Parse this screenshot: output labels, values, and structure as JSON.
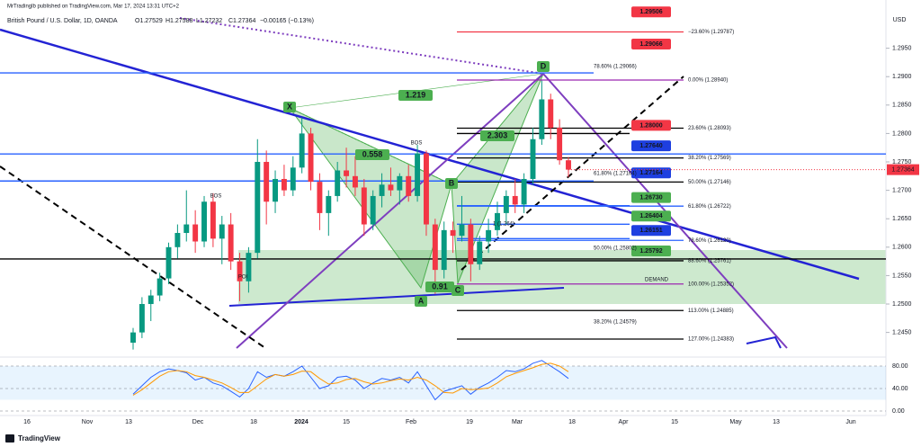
{
  "publisher": "MrTradinglb published on TradingView.com, Mar 17, 2024 13:31 UTC+2",
  "brand": "TradingView",
  "chart_data": [
    {
      "type": "candlestick",
      "title": "British Pound / U.S. Dollar, 1D, OANDA",
      "header_values": [
        "O1.27529",
        "H1.27588",
        "L1.27232",
        "C1.27364",
        "−0.00165 (−0.13%)"
      ],
      "currency": "USD",
      "categories": [
        null,
        null,
        null,
        null,
        null,
        null,
        null,
        null,
        null,
        null,
        null,
        null,
        null,
        null,
        null,
        null,
        null,
        null,
        null,
        null,
        null,
        null,
        null,
        null,
        null,
        null,
        null,
        null,
        null,
        null,
        null,
        null,
        null,
        null,
        null,
        null,
        null,
        null,
        null,
        null,
        null,
        null,
        null,
        null,
        null,
        null,
        null,
        null,
        null,
        null
      ],
      "open": [
        1.2432,
        1.245,
        1.25,
        1.2515,
        1.2545,
        1.26,
        1.2625,
        1.264,
        1.261,
        1.268,
        1.2615,
        1.264,
        1.2575,
        1.254,
        1.259,
        1.275,
        1.268,
        1.272,
        1.27,
        1.274,
        1.28,
        1.2715,
        1.266,
        1.269,
        1.2735,
        1.2725,
        1.2705,
        1.264,
        1.269,
        1.271,
        1.27,
        1.2725,
        1.269,
        1.2765,
        1.264,
        1.256,
        1.263,
        1.262,
        1.264,
        1.257,
        1.261,
        1.263,
        1.266,
        1.269,
        1.2675,
        1.272,
        1.279,
        1.286,
        1.281,
        1.27529
      ],
      "high": [
        1.2458,
        1.2512,
        1.2525,
        1.2555,
        1.2608,
        1.264,
        1.27,
        1.2665,
        1.269,
        1.2695,
        1.2655,
        1.266,
        1.259,
        1.26,
        1.279,
        1.277,
        1.2735,
        1.2745,
        1.276,
        1.2828,
        1.281,
        1.273,
        1.27,
        1.275,
        1.2775,
        1.276,
        1.272,
        1.27,
        1.273,
        1.274,
        1.273,
        1.2745,
        1.278,
        1.277,
        1.265,
        1.2645,
        1.2645,
        1.269,
        1.265,
        1.262,
        1.265,
        1.268,
        1.27,
        1.272,
        1.273,
        1.281,
        1.2893,
        1.287,
        1.2825,
        1.27588
      ],
      "low": [
        1.242,
        1.244,
        1.247,
        1.2505,
        1.2535,
        1.258,
        1.261,
        1.259,
        1.26,
        1.26,
        1.257,
        1.256,
        1.2505,
        1.252,
        1.258,
        1.264,
        1.266,
        1.269,
        1.269,
        1.273,
        1.27,
        1.263,
        1.262,
        1.268,
        1.2705,
        1.269,
        1.262,
        1.263,
        1.267,
        1.269,
        1.2675,
        1.268,
        1.268,
        1.262,
        1.2518,
        1.2545,
        1.259,
        1.261,
        1.254,
        1.256,
        1.259,
        1.262,
        1.264,
        1.266,
        1.266,
        1.271,
        1.278,
        1.279,
        1.2745,
        1.27232
      ],
      "close": [
        1.245,
        1.25,
        1.2515,
        1.2545,
        1.26,
        1.2625,
        1.264,
        1.261,
        1.268,
        1.2615,
        1.264,
        1.2575,
        1.254,
        1.259,
        1.275,
        1.268,
        1.272,
        1.27,
        1.274,
        1.28,
        1.2715,
        1.266,
        1.269,
        1.2735,
        1.2725,
        1.2705,
        1.264,
        1.269,
        1.271,
        1.27,
        1.2725,
        1.269,
        1.2765,
        1.264,
        1.256,
        1.263,
        1.262,
        1.264,
        1.257,
        1.261,
        1.263,
        1.266,
        1.269,
        1.2675,
        1.272,
        1.279,
        1.286,
        1.281,
        1.27529,
        1.27364
      ],
      "up_color": "#089981",
      "down_color": "#f23645",
      "last_price": {
        "value": 1.27364,
        "label": "1.27364",
        "color": "#f23645"
      },
      "ylim": [
        1.24225,
        1.3019
      ],
      "yticks": [
        {
          "value": 1.245,
          "label": "1.2450"
        },
        {
          "value": 1.25,
          "label": "1.2500"
        },
        {
          "value": 1.255,
          "label": "1.2550"
        },
        {
          "value": 1.26,
          "label": "1.2600"
        },
        {
          "value": 1.265,
          "label": "1.2650"
        },
        {
          "value": 1.27,
          "label": "1.2700"
        },
        {
          "value": 1.275,
          "label": "1.2750"
        },
        {
          "value": 1.28,
          "label": "1.2800"
        },
        {
          "value": 1.285,
          "label": "1.2850"
        },
        {
          "value": 1.29,
          "label": "1.2900"
        },
        {
          "value": 1.295,
          "label": "1.2950"
        }
      ],
      "time_labels": [
        "16",
        "Nov",
        "13",
        "Dec",
        "18",
        "2024",
        "15",
        "Feb",
        "19",
        "Mar",
        "18",
        "Apr",
        "15",
        "May",
        "13",
        "Jun"
      ],
      "levels": [
        {
          "label": "−23.60% (1.29787)",
          "value": 1.29787,
          "color": "#f23645"
        },
        {
          "label": "0.00% (1.28940)",
          "value": 1.2894,
          "color": "#9c27b0"
        },
        {
          "label": "23.60% (1.28093)",
          "value": 1.28093,
          "color": "#000000"
        },
        {
          "label": "38.20% (1.27569)",
          "value": 1.27569,
          "color": "#000000"
        },
        {
          "label": "50.00% (1.27146)",
          "value": 1.27146,
          "color": "#000000"
        },
        {
          "label": "61.80% (1.26722)",
          "value": 1.26722,
          "color": "#2962ff"
        },
        {
          "label": "78.60% (1.26120)",
          "value": 1.2612,
          "color": "#2962ff"
        },
        {
          "label": "88.60% (1.25761)",
          "value": 1.25761,
          "color": "#000000"
        },
        {
          "label": "100.00% (1.25352)",
          "value": 1.25352,
          "color": "#9c27b0"
        },
        {
          "label": "113.00% (1.24885)",
          "value": 1.24885,
          "color": "#000000"
        },
        {
          "label": "127.00% (1.24383)",
          "value": 1.24383,
          "color": "#000000"
        }
      ],
      "price_tags": [
        {
          "value": 1.29506,
          "label": "1.29506",
          "color": "#f23645"
        },
        {
          "value": 1.29066,
          "label": "1.29066",
          "color": "#f23645"
        },
        {
          "value": 1.28,
          "label": "1.28000",
          "color": "#f23645"
        },
        {
          "value": 1.2764,
          "label": "1.27640",
          "color": "#1e3fe0"
        },
        {
          "value": 1.27164,
          "label": "1.27164",
          "color": "#1e3fe0"
        },
        {
          "value": 1.2673,
          "label": "1.26730",
          "color": "#4caf50"
        },
        {
          "value": 1.26404,
          "label": "1.26404",
          "color": "#4caf50"
        },
        {
          "value": 1.26151,
          "label": "1.26151",
          "color": "#1e3fe0"
        },
        {
          "value": 1.25792,
          "label": "1.25792",
          "color": "#4caf50"
        }
      ],
      "annotations": [
        "X",
        "A",
        "B",
        "C",
        "D",
        "1.219",
        "0.558",
        "2.303",
        "0.91",
        "BOS",
        "BOS",
        "POI",
        "DEMAND",
        "78.60% (1.29066)",
        "61.80% (1.27164)",
        "50.00% (1.25802)",
        "38.20% (1.24579)",
        "1 (1.264)"
      ]
    },
    {
      "type": "line",
      "series": [
        {
          "color": "#2962ff",
          "values": [
            30,
            45,
            60,
            70,
            75,
            72,
            68,
            55,
            60,
            50,
            45,
            35,
            25,
            40,
            70,
            60,
            65,
            62,
            70,
            80,
            60,
            40,
            45,
            60,
            62,
            55,
            40,
            50,
            58,
            55,
            60,
            50,
            70,
            45,
            20,
            35,
            40,
            45,
            30,
            42,
            50,
            60,
            72,
            70,
            75,
            85,
            90,
            80,
            70,
            58
          ]
        },
        {
          "color": "#ff9800",
          "values": [
            28,
            38,
            50,
            62,
            70,
            72,
            70,
            63,
            60,
            55,
            50,
            42,
            33,
            33,
            45,
            57,
            65,
            62,
            65,
            71,
            70,
            58,
            48,
            50,
            56,
            58,
            52,
            48,
            50,
            54,
            57,
            55,
            60,
            55,
            45,
            33,
            32,
            40,
            38,
            39,
            41,
            50,
            61,
            67,
            72,
            77,
            83,
            85,
            80,
            70
          ]
        }
      ],
      "band": [
        20,
        80
      ],
      "ylim": [
        -8,
        88
      ],
      "yticks": [
        {
          "value": 0,
          "label": "0.00"
        },
        {
          "value": 40,
          "label": "40.00"
        },
        {
          "value": 80,
          "label": "80.00"
        }
      ]
    }
  ]
}
